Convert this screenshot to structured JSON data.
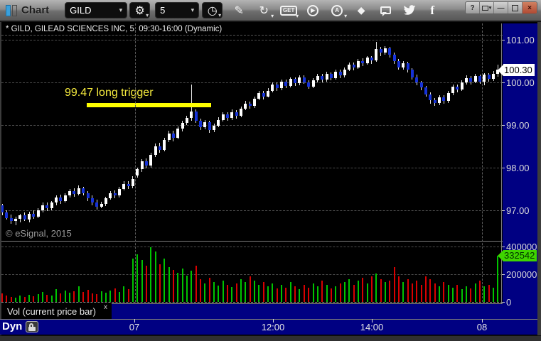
{
  "window": {
    "title": "Chart",
    "controls": {
      "help": "?",
      "popout_caret": "▾",
      "minimize": "—",
      "close": "×"
    }
  },
  "toolbar": {
    "symbol_value": "GILD",
    "interval_value": "5",
    "caret": "▾",
    "glyphs": {
      "gear": "⚙",
      "clock": "◷",
      "pencil": "✎",
      "redo": "↻",
      "get": "GET",
      "play": "▶",
      "auto": "A",
      "send": "◆",
      "facebook": "f"
    }
  },
  "chart_header": "* GILD, GILEAD SCIENCES INC, 5, 09:30-16:00 (Dynamic)",
  "annotation": {
    "text": "99.47 long trigger"
  },
  "copyright": "© eSignal, 2015",
  "price_axis": {
    "labels": [
      "101.00",
      "100.00",
      "99.00",
      "98.00",
      "97.00"
    ],
    "last_price": "100.30"
  },
  "volume_axis": {
    "labels": [
      "400000",
      "200000",
      "0"
    ],
    "current_volume": "332542"
  },
  "tabs": {
    "volume_tab": "Vol (current price bar)",
    "close": "x"
  },
  "footer": {
    "mode": "Dyn",
    "time_labels": [
      "07",
      "12:00",
      "14:00",
      "08"
    ]
  },
  "colors": {
    "axis_bg": "#000082",
    "candle_up": "#ffffff",
    "candle_down": "#1531d8",
    "wick": "#e6e6e6",
    "vol_up": "#00c400",
    "vol_down": "#d90000",
    "trigger": "#ffff00",
    "price_badge_bg": "#ffffff",
    "vol_badge_bg": "#3fd400"
  },
  "chart_data": {
    "type": "candlestick+volume",
    "symbol": "GILD",
    "company": "GILEAD SCIENCES INC",
    "interval_minutes": 5,
    "session": "09:30-16:00",
    "mode": "Dynamic",
    "price_ylim": [
      96.28,
      101.1
    ],
    "volume_ylim": [
      0,
      400000
    ],
    "trigger_line": 99.47,
    "last_price": 100.3,
    "last_volume": 332542,
    "day_boundaries": [
      30,
      107
    ],
    "x_axis_labels": [
      "07",
      "12:00",
      "14:00",
      "08"
    ],
    "candles": [
      [
        97.12,
        97.15,
        96.88,
        96.95
      ],
      [
        96.95,
        97.0,
        96.78,
        96.82
      ],
      [
        96.82,
        96.9,
        96.68,
        96.75
      ],
      [
        96.75,
        96.85,
        96.65,
        96.8
      ],
      [
        96.8,
        96.92,
        96.72,
        96.88
      ],
      [
        96.88,
        96.95,
        96.74,
        96.78
      ],
      [
        96.78,
        96.96,
        96.72,
        96.92
      ],
      [
        96.92,
        97.0,
        96.8,
        96.85
      ],
      [
        96.85,
        97.05,
        96.82,
        97.0
      ],
      [
        97.0,
        97.18,
        96.95,
        97.12
      ],
      [
        97.12,
        97.18,
        96.98,
        97.04
      ],
      [
        97.04,
        97.22,
        97.0,
        97.18
      ],
      [
        97.18,
        97.35,
        97.12,
        97.3
      ],
      [
        97.3,
        97.36,
        97.15,
        97.21
      ],
      [
        97.21,
        97.4,
        97.18,
        97.35
      ],
      [
        97.35,
        97.5,
        97.3,
        97.45
      ],
      [
        97.45,
        97.52,
        97.32,
        97.38
      ],
      [
        97.38,
        97.58,
        97.34,
        97.52
      ],
      [
        97.52,
        97.55,
        97.35,
        97.4
      ],
      [
        97.4,
        97.45,
        97.22,
        97.28
      ],
      [
        97.28,
        97.34,
        97.12,
        97.18
      ],
      [
        97.18,
        97.25,
        97.02,
        97.08
      ],
      [
        97.08,
        97.2,
        97.04,
        97.15
      ],
      [
        97.15,
        97.32,
        97.1,
        97.28
      ],
      [
        97.28,
        97.45,
        97.24,
        97.4
      ],
      [
        97.4,
        97.46,
        97.28,
        97.34
      ],
      [
        97.34,
        97.55,
        97.3,
        97.5
      ],
      [
        97.5,
        97.68,
        97.46,
        97.62
      ],
      [
        97.62,
        97.68,
        97.5,
        97.56
      ],
      [
        97.56,
        97.8,
        97.52,
        97.74
      ],
      [
        97.82,
        98.0,
        97.76,
        97.96
      ],
      [
        97.96,
        98.2,
        97.9,
        98.15
      ],
      [
        98.15,
        98.22,
        97.98,
        98.05
      ],
      [
        98.05,
        98.35,
        98.0,
        98.3
      ],
      [
        98.3,
        98.56,
        98.25,
        98.5
      ],
      [
        98.5,
        98.58,
        98.34,
        98.42
      ],
      [
        98.42,
        98.7,
        98.38,
        98.65
      ],
      [
        98.65,
        98.86,
        98.6,
        98.8
      ],
      [
        98.8,
        98.86,
        98.62,
        98.7
      ],
      [
        98.7,
        98.96,
        98.66,
        98.92
      ],
      [
        98.92,
        99.1,
        98.85,
        99.05
      ],
      [
        99.05,
        99.22,
        99.0,
        99.16
      ],
      [
        99.16,
        99.95,
        99.1,
        99.32
      ],
      [
        99.32,
        99.36,
        99.05,
        99.1
      ],
      [
        99.1,
        99.15,
        98.88,
        98.95
      ],
      [
        98.95,
        99.12,
        98.9,
        99.06
      ],
      [
        99.06,
        99.1,
        98.82,
        98.88
      ],
      [
        98.88,
        99.04,
        98.84,
        98.98
      ],
      [
        98.98,
        99.18,
        98.94,
        99.12
      ],
      [
        99.12,
        99.3,
        99.08,
        99.25
      ],
      [
        99.25,
        99.3,
        99.1,
        99.16
      ],
      [
        99.16,
        99.36,
        99.12,
        99.3
      ],
      [
        99.3,
        99.35,
        99.15,
        99.22
      ],
      [
        99.22,
        99.44,
        99.18,
        99.38
      ],
      [
        99.38,
        99.56,
        99.34,
        99.5
      ],
      [
        99.5,
        99.55,
        99.38,
        99.44
      ],
      [
        99.44,
        99.66,
        99.4,
        99.62
      ],
      [
        99.62,
        99.8,
        99.58,
        99.75
      ],
      [
        99.75,
        99.8,
        99.6,
        99.67
      ],
      [
        99.67,
        99.86,
        99.64,
        99.8
      ],
      [
        99.8,
        100.0,
        99.76,
        99.95
      ],
      [
        99.95,
        100.0,
        99.8,
        99.86
      ],
      [
        99.86,
        100.06,
        99.82,
        100.02
      ],
      [
        100.02,
        100.06,
        99.86,
        99.92
      ],
      [
        99.92,
        100.12,
        99.88,
        100.08
      ],
      [
        100.08,
        100.12,
        99.92,
        99.98
      ],
      [
        99.98,
        100.16,
        99.94,
        100.12
      ],
      [
        100.12,
        100.16,
        99.96,
        100.0
      ],
      [
        100.0,
        100.05,
        99.85,
        99.9
      ],
      [
        99.9,
        100.1,
        99.86,
        100.05
      ],
      [
        100.05,
        100.2,
        100.0,
        100.15
      ],
      [
        100.15,
        100.2,
        100.0,
        100.06
      ],
      [
        100.06,
        100.25,
        100.02,
        100.2
      ],
      [
        100.2,
        100.24,
        100.05,
        100.1
      ],
      [
        100.1,
        100.3,
        100.06,
        100.25
      ],
      [
        100.25,
        100.3,
        100.1,
        100.16
      ],
      [
        100.16,
        100.35,
        100.12,
        100.3
      ],
      [
        100.3,
        100.47,
        100.26,
        100.42
      ],
      [
        100.42,
        100.46,
        100.28,
        100.35
      ],
      [
        100.35,
        100.55,
        100.31,
        100.5
      ],
      [
        100.5,
        100.56,
        100.38,
        100.45
      ],
      [
        100.45,
        100.62,
        100.41,
        100.58
      ],
      [
        100.58,
        100.62,
        100.44,
        100.52
      ],
      [
        100.52,
        100.95,
        100.48,
        100.78
      ],
      [
        100.78,
        100.84,
        100.62,
        100.7
      ],
      [
        100.7,
        100.85,
        100.65,
        100.8
      ],
      [
        100.8,
        100.84,
        100.58,
        100.65
      ],
      [
        100.65,
        100.7,
        100.44,
        100.5
      ],
      [
        100.5,
        100.55,
        100.3,
        100.35
      ],
      [
        100.35,
        100.5,
        100.3,
        100.45
      ],
      [
        100.45,
        100.48,
        100.24,
        100.3
      ],
      [
        100.3,
        100.34,
        100.06,
        100.12
      ],
      [
        100.12,
        100.18,
        99.94,
        100.0
      ],
      [
        100.0,
        100.04,
        99.82,
        99.88
      ],
      [
        99.88,
        99.92,
        99.66,
        99.72
      ],
      [
        99.72,
        99.76,
        99.5,
        99.58
      ],
      [
        99.58,
        99.64,
        99.45,
        99.52
      ],
      [
        99.52,
        99.7,
        99.47,
        99.65
      ],
      [
        99.65,
        99.7,
        99.5,
        99.56
      ],
      [
        99.56,
        99.8,
        99.52,
        99.75
      ],
      [
        99.75,
        99.95,
        99.7,
        99.9
      ],
      [
        99.9,
        99.95,
        99.76,
        99.84
      ],
      [
        99.84,
        100.05,
        99.8,
        100.0
      ],
      [
        100.0,
        100.16,
        99.95,
        100.1
      ],
      [
        100.1,
        100.15,
        99.95,
        100.02
      ],
      [
        100.02,
        100.2,
        99.98,
        100.15
      ],
      [
        100.15,
        100.18,
        99.96,
        100.02
      ],
      [
        100.02,
        100.22,
        99.94,
        100.18
      ],
      [
        100.18,
        100.22,
        100.02,
        100.08
      ],
      [
        100.08,
        100.26,
        100.04,
        100.2
      ],
      [
        100.2,
        100.42,
        100.14,
        100.3
      ]
    ],
    "volumes": [
      62000,
      48000,
      38000,
      30000,
      44000,
      35000,
      50000,
      40000,
      56000,
      72000,
      50000,
      46000,
      92000,
      60000,
      82000,
      66000,
      76000,
      112000,
      72000,
      86000,
      62000,
      56000,
      76000,
      66000,
      82000,
      96000,
      72000,
      112000,
      90000,
      310000,
      340000,
      300000,
      260000,
      395000,
      360000,
      270000,
      310000,
      250000,
      230000,
      210000,
      240000,
      190000,
      222000,
      262000,
      165000,
      135000,
      172000,
      142000,
      115000,
      152000,
      122000,
      105000,
      132000,
      162000,
      142000,
      182000,
      152000,
      122000,
      142000,
      112000,
      132000,
      96000,
      122000,
      102000,
      142000,
      112000,
      92000,
      122000,
      102000,
      132000,
      112000,
      152000,
      122000,
      96000,
      112000,
      132000,
      142000,
      162000,
      122000,
      152000,
      172000,
      132000,
      182000,
      202000,
      162000,
      142000,
      152000,
      252000,
      182000,
      142000,
      162000,
      132000,
      152000,
      122000,
      182000,
      162000,
      132000,
      112000,
      142000,
      122000,
      102000,
      122000,
      92000,
      112000,
      96000,
      132000,
      152000,
      112000,
      122000,
      102000,
      332542
    ]
  }
}
